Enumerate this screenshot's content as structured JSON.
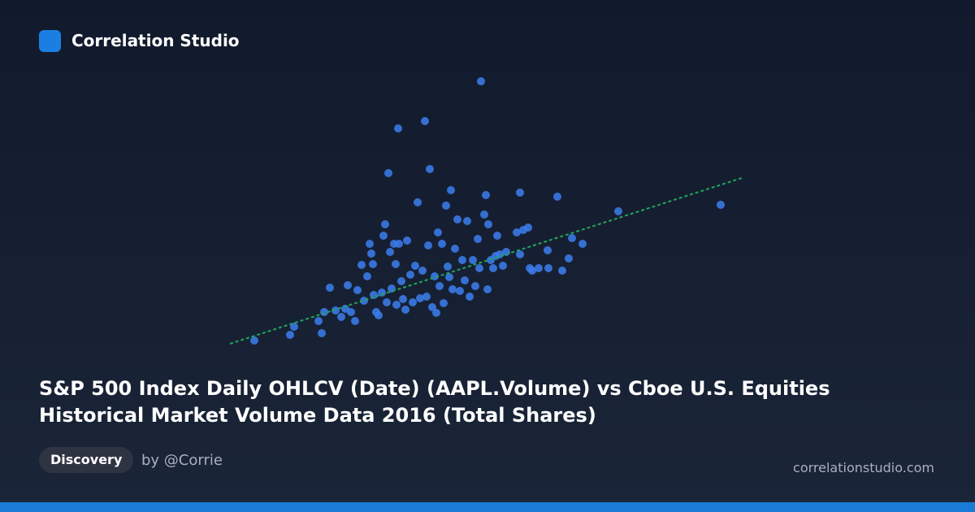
{
  "brand": "Correlation Studio",
  "tag": "Discovery",
  "author": "by @Corrie",
  "site": "correlationstudio.com",
  "chart_data": {
    "type": "scatter",
    "title": "S&P 500 Index Daily OHLCV (Date) (AAPL.Volume) vs Cboe U.S. Equities Historical Market Volume Data 2016 (Total Shares)",
    "xlim": [
      280,
      920
    ],
    "ylim": [
      200,
      540
    ],
    "series": [
      {
        "color": "#3b7be8",
        "x": [
          313,
          357,
          362,
          396,
          392,
          399,
          406,
          413,
          420,
          428,
          425,
          432,
          437,
          440,
          445,
          448,
          452,
          455,
          457,
          459,
          460,
          463,
          466,
          470,
          472,
          474,
          476,
          478,
          480,
          482,
          485,
          487,
          488,
          490,
          491,
          494,
          496,
          499,
          501,
          505,
          508,
          511,
          514,
          517,
          520,
          523,
          525,
          527,
          529,
          532,
          535,
          537,
          539,
          541,
          544,
          546,
          549,
          551,
          553,
          555,
          557,
          560,
          563,
          566,
          569,
          572,
          575,
          578,
          582,
          585,
          588,
          590,
          592,
          596,
          598,
          600,
          601,
          604,
          607,
          610,
          612,
          615,
          619,
          623,
          636,
          640,
          640,
          644,
          650,
          652,
          655,
          663,
          675,
          674,
          686,
          692,
          700,
          704,
          717,
          761,
          887
        ],
        "y": [
          211,
          218,
          228,
          220,
          235,
          246,
          276,
          248,
          240,
          279,
          250,
          246,
          235,
          273,
          304,
          260,
          290,
          330,
          318,
          305,
          267,
          246,
          242,
          270,
          340,
          354,
          258,
          417,
          320,
          275,
          330,
          305,
          255,
          472,
          330,
          284,
          262,
          249,
          334,
          292,
          258,
          303,
          381,
          263,
          297,
          481,
          265,
          328,
          422,
          252,
          290,
          245,
          344,
          278,
          330,
          257,
          377,
          302,
          289,
          396,
          274,
          324,
          360,
          272,
          310,
          285,
          358,
          265,
          310,
          278,
          336,
          300,
          530,
          366,
          390,
          274,
          354,
          310,
          300,
          315,
          340,
          317,
          303,
          320,
          344,
          317,
          393,
          347,
          350,
          300,
          297,
          300,
          300,
          322,
          388,
          297,
          312,
          337,
          330,
          370,
          378
        ]
      }
    ],
    "trendline": {
      "x": [
        283,
        913
      ],
      "y": [
        207,
        411
      ],
      "color": "#22a559"
    }
  }
}
